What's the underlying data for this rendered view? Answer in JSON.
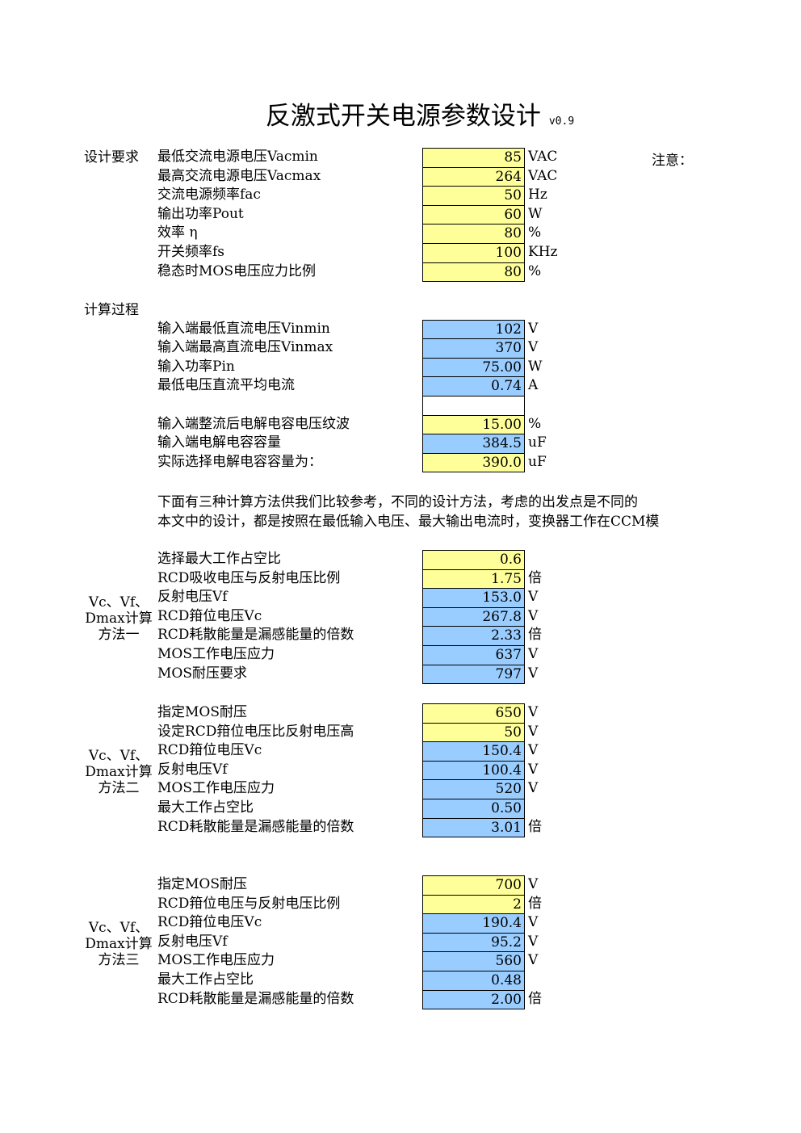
{
  "title": "反激式开关电源参数设计",
  "version": "v0.9",
  "note": "注意：",
  "sections": [
    {
      "label_lines": [
        "设计要求"
      ],
      "rows": [
        {
          "label": "最低交流电源电压Vacmin",
          "value": "85",
          "unit": "VAC",
          "color": "#ffff99"
        },
        {
          "label": "最高交流电源电压Vacmax",
          "value": "264",
          "unit": "VAC",
          "color": "#ffff99"
        },
        {
          "label": "交流电源频率fac",
          "value": "50",
          "unit": "Hz",
          "color": "#ffff99"
        },
        {
          "label": "输出功率Pout",
          "value": "60",
          "unit": "W",
          "color": "#ffff99"
        },
        {
          "label": "效率 η",
          "value": "80",
          "unit": "%",
          "color": "#ffff99"
        },
        {
          "label": "开关频率fs",
          "value": "100",
          "unit": "KHz",
          "color": "#ffff99"
        },
        {
          "label": "稳态时MOS电压应力比例",
          "value": "80",
          "unit": "%",
          "color": "#ffff99"
        }
      ]
    },
    {
      "label_lines": [
        "计算过程"
      ],
      "rows": [
        {
          "label": "输入端最低直流电压Vinmin",
          "value": "102",
          "unit": "V",
          "color": "#99ccff"
        },
        {
          "label": "输入端最高直流电压Vinmax",
          "value": "370",
          "unit": "V",
          "color": "#99ccff"
        },
        {
          "label": "输入功率Pin",
          "value": "75.00",
          "unit": "W",
          "color": "#99ccff"
        },
        {
          "label": "最低电压直流平均电流",
          "value": "0.74",
          "unit": "A",
          "color": "#99ccff"
        },
        {
          "color": "#ffffff"
        },
        {
          "label": "输入端整流后电解电容电压纹波",
          "value": "15.00",
          "unit": "%",
          "color": "#ffff99"
        },
        {
          "label": "输入端电解电容容量",
          "value": "384.5",
          "unit": "uF",
          "color": "#99ccff"
        },
        {
          "label": "实际选择电解电容容量为：",
          "value": "390.0",
          "unit": "uF",
          "color": "#ffff99"
        }
      ]
    },
    {
      "paragraph": [
        "下面有三种计算方法供我们比较参考，不同的设计方法，考虑的出发点是不同的",
        "本文中的设计，都是按照在最低输入电压、最大输出电流时，变换器工作在CCM模"
      ]
    },
    {
      "label_lines": [
        "Vc、Vf、",
        "Dmax计算",
        "方法一"
      ],
      "rows": [
        {
          "label": "选择最大工作占空比",
          "value": "0.6",
          "color": "#ffff99"
        },
        {
          "label": "RCD吸收电压与反射电压比例",
          "value": "1.75",
          "unit": "倍",
          "color": "#ffff99"
        },
        {
          "label": "反射电压Vf",
          "value": "153.0",
          "unit": "V",
          "color": "#99ccff"
        },
        {
          "label": "RCD箝位电压Vc",
          "value": "267.8",
          "unit": "V",
          "color": "#99ccff"
        },
        {
          "label": "RCD耗散能量是漏感能量的倍数",
          "value": "2.33",
          "unit": "倍",
          "color": "#99ccff"
        },
        {
          "label": "MOS工作电压应力",
          "value": "637",
          "unit": "V",
          "color": "#99ccff"
        },
        {
          "label": "MOS耐压要求",
          "value": "797",
          "unit": "V",
          "color": "#99ccff"
        }
      ]
    },
    {
      "label_lines": [
        "Vc、Vf、",
        "Dmax计算",
        "方法二"
      ],
      "rows": [
        {
          "label": "指定MOS耐压",
          "value": "650",
          "unit": "V",
          "color": "#ffff99"
        },
        {
          "label": "设定RCD箝位电压比反射电压高",
          "value": "50",
          "unit": "V",
          "color": "#ffff99"
        },
        {
          "label": "RCD箝位电压Vc",
          "value": "150.4",
          "unit": "V",
          "color": "#99ccff"
        },
        {
          "label": "反射电压Vf",
          "value": "100.4",
          "unit": "V",
          "color": "#99ccff"
        },
        {
          "label": "MOS工作电压应力",
          "value": "520",
          "unit": "V",
          "color": "#99ccff"
        },
        {
          "label": "最大工作占空比",
          "value": "0.50",
          "color": "#99ccff"
        },
        {
          "label": "RCD耗散能量是漏感能量的倍数",
          "value": "3.01",
          "unit": "倍",
          "color": "#99ccff"
        }
      ]
    },
    {
      "label_lines": [
        "Vc、Vf、",
        "Dmax计算",
        "方法三"
      ],
      "rows": [
        {
          "label": "指定MOS耐压",
          "value": "700",
          "unit": "V",
          "color": "#ffff99"
        },
        {
          "label": "RCD箝位电压与反射电压比例",
          "value": "2",
          "unit": "倍",
          "color": "#ffff99"
        },
        {
          "label": "RCD箝位电压Vc",
          "value": "190.4",
          "unit": "V",
          "color": "#99ccff"
        },
        {
          "label": "反射电压Vf",
          "value": "95.2",
          "unit": "V",
          "color": "#99ccff"
        },
        {
          "label": "MOS工作电压应力",
          "value": "560",
          "unit": "V",
          "color": "#99ccff"
        },
        {
          "label": "最大工作占空比",
          "value": "0.48",
          "color": "#99ccff"
        },
        {
          "label": "RCD耗散能量是漏感能量的倍数",
          "value": "2.00",
          "unit": "倍",
          "color": "#99ccff"
        }
      ]
    }
  ]
}
